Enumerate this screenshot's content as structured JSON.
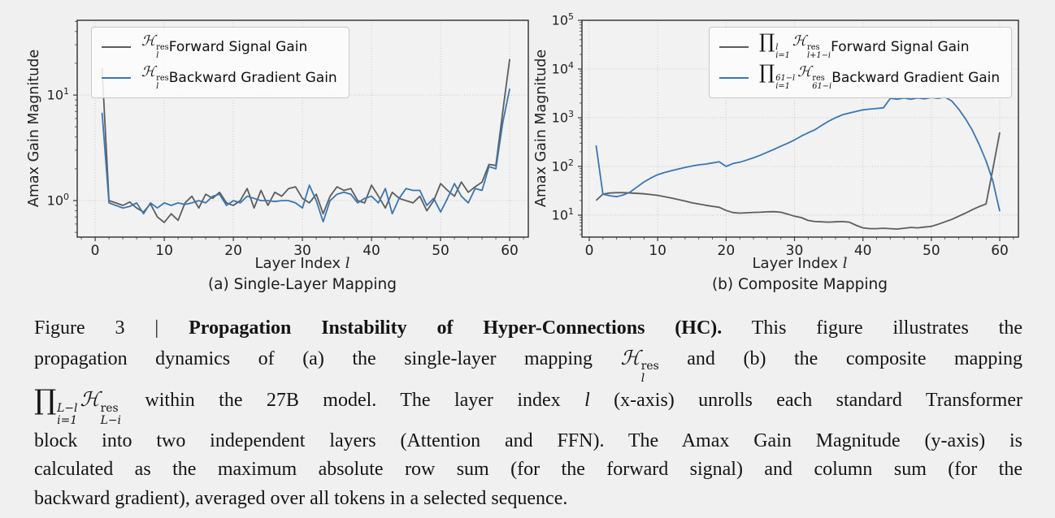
{
  "page": {
    "background": "#f0f0f1"
  },
  "styles": {
    "forward_color": "#5d5d5d",
    "backward_color": "#3b76af",
    "grid_color": "#c6c6c6",
    "spine_color": "#3a3a3a",
    "plot_face": "#f2f2f3",
    "tick_text_color": "#222222",
    "legend_bg": "#fdfdfd",
    "legend_border": "#c9c9c9",
    "caption_color": "#141414"
  },
  "chart_data": [
    {
      "id": "a",
      "type": "line",
      "subcaption": "(a) Single-Layer Mapping",
      "xlabel_text": "Layer Index l",
      "xlabel_runs": [
        {
          "k": "t",
          "v": "Layer Index "
        },
        {
          "k": "i",
          "v": "l"
        }
      ],
      "ylabel": "Amax Gain Magnitude",
      "yscale": "log",
      "grid": "dotted",
      "legend_position": "upper left",
      "x_ticks": [
        0,
        10,
        20,
        30,
        40,
        50,
        60
      ],
      "y_tick_exponents": [
        0,
        1
      ],
      "xlim": [
        -2.6,
        62.7
      ],
      "ylim": [
        0.451,
        51.1
      ],
      "x_start": 1,
      "x_end": 60,
      "series": [
        {
          "key": "forward",
          "legend_text": "ℋ_l^res Forward Signal Gain",
          "legend_runs": [
            {
              "k": "h",
              "sup": "res",
              "sub": "l"
            },
            {
              "k": "t",
              "v": " Forward Signal Gain"
            }
          ],
          "color": "#5d5d5d",
          "values": [
            18,
            1.0,
            0.95,
            0.9,
            0.97,
            0.85,
            0.78,
            0.93,
            0.7,
            0.62,
            0.75,
            0.65,
            0.95,
            1.1,
            0.85,
            1.15,
            1.05,
            1.2,
            0.95,
            0.9,
            1.0,
            1.3,
            0.85,
            1.25,
            0.9,
            1.2,
            1.1,
            1.3,
            1.35,
            1.05,
            0.95,
            1.15,
            0.75,
            1.1,
            1.35,
            1.25,
            1.3,
            1.0,
            0.95,
            1.4,
            1.1,
            0.85,
            1.2,
            1.05,
            1.0,
            0.95,
            1.1,
            0.8,
            1.0,
            1.45,
            1.25,
            1.1,
            1.5,
            1.2,
            1.35,
            1.5,
            2.2,
            2.15,
            7.0,
            22
          ]
        },
        {
          "key": "backward",
          "legend_text": "ℋ_l^res Backward Gradient Gain",
          "legend_runs": [
            {
              "k": "h",
              "sup": "res",
              "sub": "l"
            },
            {
              "k": "t",
              "v": " Backward Gradient Gain"
            }
          ],
          "color": "#3b76af",
          "values": [
            6.8,
            0.95,
            0.9,
            0.85,
            0.88,
            0.95,
            0.75,
            0.95,
            0.85,
            0.95,
            0.9,
            0.95,
            0.92,
            0.95,
            1.0,
            0.95,
            1.1,
            1.15,
            0.9,
            1.0,
            0.95,
            1.1,
            1.05,
            1.0,
            1.0,
            0.98,
            1.0,
            1.0,
            0.95,
            0.85,
            1.4,
            1.0,
            0.63,
            1.0,
            1.15,
            1.2,
            1.15,
            0.95,
            1.05,
            1.1,
            0.95,
            1.3,
            0.75,
            1.05,
            1.3,
            1.25,
            1.25,
            0.9,
            1.05,
            0.78,
            1.05,
            1.45,
            1.1,
            0.95,
            1.3,
            1.25,
            2.1,
            2.0,
            5.5,
            11.5
          ]
        }
      ]
    },
    {
      "id": "b",
      "type": "line",
      "subcaption": "(b) Composite Mapping",
      "xlabel_text": "Layer Index l",
      "xlabel_runs": [
        {
          "k": "t",
          "v": "Layer Index "
        },
        {
          "k": "i",
          "v": "l"
        }
      ],
      "ylabel": "Amax Gain Magnitude",
      "yscale": "log",
      "grid": "dotted",
      "legend_position": "upper right",
      "x_ticks": [
        0,
        10,
        20,
        30,
        40,
        50,
        60
      ],
      "y_tick_exponents": [
        1,
        2,
        3,
        4,
        5
      ],
      "xlim": [
        -1.07,
        62.73
      ],
      "ylim": [
        3.55,
        100000
      ],
      "x_start": 1,
      "x_end": 60,
      "series": [
        {
          "key": "forward",
          "legend_text": "∏_{i=1}^{l} ℋ_{l+1−i}^res Forward Signal Gain",
          "legend_runs": [
            {
              "k": "p",
              "sup": "l",
              "sub": "i=1"
            },
            {
              "k": "h",
              "sup": "res",
              "sub": "l+1−i"
            },
            {
              "k": "t",
              "v": " Forward Signal Gain"
            }
          ],
          "color": "#5d5d5d",
          "values": [
            20,
            27,
            28.5,
            29,
            29,
            28.5,
            28,
            27.5,
            26.5,
            25.5,
            24,
            22.5,
            21,
            19.5,
            18,
            17,
            16,
            15.2,
            14.5,
            12.5,
            11.3,
            11,
            11.2,
            11.4,
            11.5,
            11.7,
            11.8,
            11.5,
            10.5,
            9.5,
            8.9,
            7.8,
            7.4,
            7.3,
            7.2,
            7.3,
            7.4,
            7.2,
            6.2,
            5.5,
            5.3,
            5.3,
            5.4,
            5.3,
            5.2,
            5.4,
            5.6,
            5.5,
            5.7,
            5.9,
            6.5,
            7.3,
            8.2,
            9.5,
            11,
            13,
            15,
            17,
            90,
            500
          ]
        },
        {
          "key": "backward",
          "legend_text": "∏_{i=1}^{61−l} ℋ_{61−i}^res Backward Gradient Gain",
          "legend_runs": [
            {
              "k": "p",
              "sup": "61−l",
              "sub": "i=1"
            },
            {
              "k": "h",
              "sup": "res",
              "sub": "61−i"
            },
            {
              "k": "t",
              "v": " Backward Gradient Gain"
            }
          ],
          "color": "#3b76af",
          "values": [
            270,
            27,
            25,
            24,
            26,
            30,
            38,
            48,
            58,
            68,
            75,
            82,
            88,
            95,
            102,
            108,
            112,
            118,
            125,
            100,
            115,
            122,
            135,
            150,
            170,
            195,
            225,
            260,
            300,
            350,
            420,
            490,
            570,
            700,
            850,
            1000,
            1150,
            1250,
            1350,
            1450,
            1500,
            1550,
            1600,
            2500,
            2400,
            2550,
            2400,
            2550,
            2450,
            2600,
            2500,
            2650,
            2200,
            1500,
            950,
            550,
            280,
            130,
            50,
            12
          ]
        }
      ]
    }
  ],
  "caption": {
    "lines": [
      {
        "justify": true,
        "runs": [
          {
            "k": "t",
            "v": "Figure 3 | "
          },
          {
            "k": "b",
            "v": "Propagation Instability of Hyper-Connections (HC)."
          },
          {
            "k": "t",
            "v": " This figure illustrates the"
          }
        ]
      },
      {
        "justify": true,
        "runs": [
          {
            "k": "t",
            "v": "propagation dynamics of (a) the single-layer mapping "
          },
          {
            "k": "h",
            "sup": "res",
            "sub": "l"
          },
          {
            "k": "t",
            "v": " and (b) the composite mapping"
          }
        ]
      },
      {
        "justify": true,
        "runs": [
          {
            "k": "p",
            "sup": "L−l",
            "sub": "i=1"
          },
          {
            "k": "h",
            "sup": "res",
            "sub": "L−i"
          },
          {
            "k": "t",
            "v": " within the 27B model. The layer index "
          },
          {
            "k": "i",
            "v": "l"
          },
          {
            "k": "t",
            "v": " (x-axis) unrolls each standard Transformer"
          }
        ]
      },
      {
        "justify": true,
        "runs": [
          {
            "k": "t",
            "v": "block into two independent layers (Attention and FFN). The Amax Gain Magnitude (y-axis) is"
          }
        ]
      },
      {
        "justify": true,
        "runs": [
          {
            "k": "t",
            "v": "calculated as the maximum absolute row sum (for the forward signal) and column sum (for the"
          }
        ]
      },
      {
        "justify": false,
        "runs": [
          {
            "k": "t",
            "v": "backward gradient), averaged over all tokens in a selected sequence."
          }
        ]
      }
    ]
  }
}
